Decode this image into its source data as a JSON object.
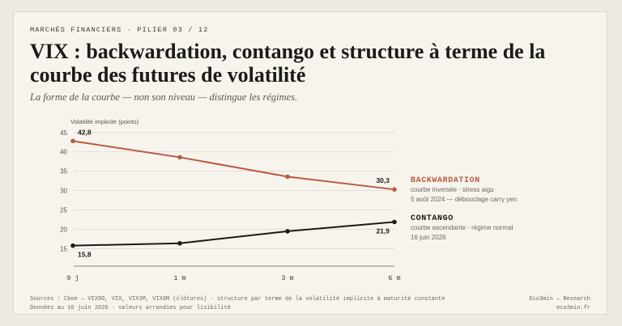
{
  "header": {
    "kicker": "MARCHÉS FINANCIERS · PILIER 03 / 12",
    "title": "VIX : backwardation, contango et structure à terme de la courbe des futures de volatilité",
    "subtitle": "La forme de la courbe — non son niveau — distingue les régimes."
  },
  "legend": {
    "backwardation": {
      "name": "BACKWARDATION",
      "line1": "courbe inversée · stress aigu",
      "line2": "5 août 2024 — débouclage carry yen"
    },
    "contango": {
      "name": "CONTANGO",
      "line1": "courbe ascendante · régime normal",
      "line2": "16 juin 2026"
    }
  },
  "footer": {
    "sources": "Sources : Cboe — VIX9D, VIX, VIX3M, VIX6M (clôtures) · structure par terme de la volatilité implicite à maturité constante",
    "note": "Données au 16 juin 2026 · valeurs arrondies pour lisibilité",
    "brand": "Eco3min — Research",
    "site": "eco3min.fr"
  },
  "colors": {
    "backwardation": "#b85c3e",
    "contango": "#1d1b19",
    "grid": "#dcd8d0",
    "axis_text": "#5a5651"
  },
  "chart_data": {
    "type": "line",
    "ylabel": "Volatilité implicite (points)",
    "categories": [
      "9 j",
      "1 m",
      "3 m",
      "6 m"
    ],
    "yticks": [
      15,
      20,
      25,
      30,
      35,
      40,
      45
    ],
    "ylim": [
      10.5,
      46
    ],
    "grid": true,
    "legend_placement": "right",
    "series": [
      {
        "name": "BACKWARDATION",
        "values": [
          42.8,
          38.6,
          33.6,
          30.3
        ],
        "labels": [
          "42,8",
          "",
          "",
          "30,3"
        ],
        "color_key": "backwardation"
      },
      {
        "name": "CONTANGO",
        "values": [
          15.8,
          16.4,
          19.5,
          21.9
        ],
        "labels": [
          "15,8",
          "",
          "",
          "21,9"
        ],
        "color_key": "contango"
      }
    ]
  }
}
